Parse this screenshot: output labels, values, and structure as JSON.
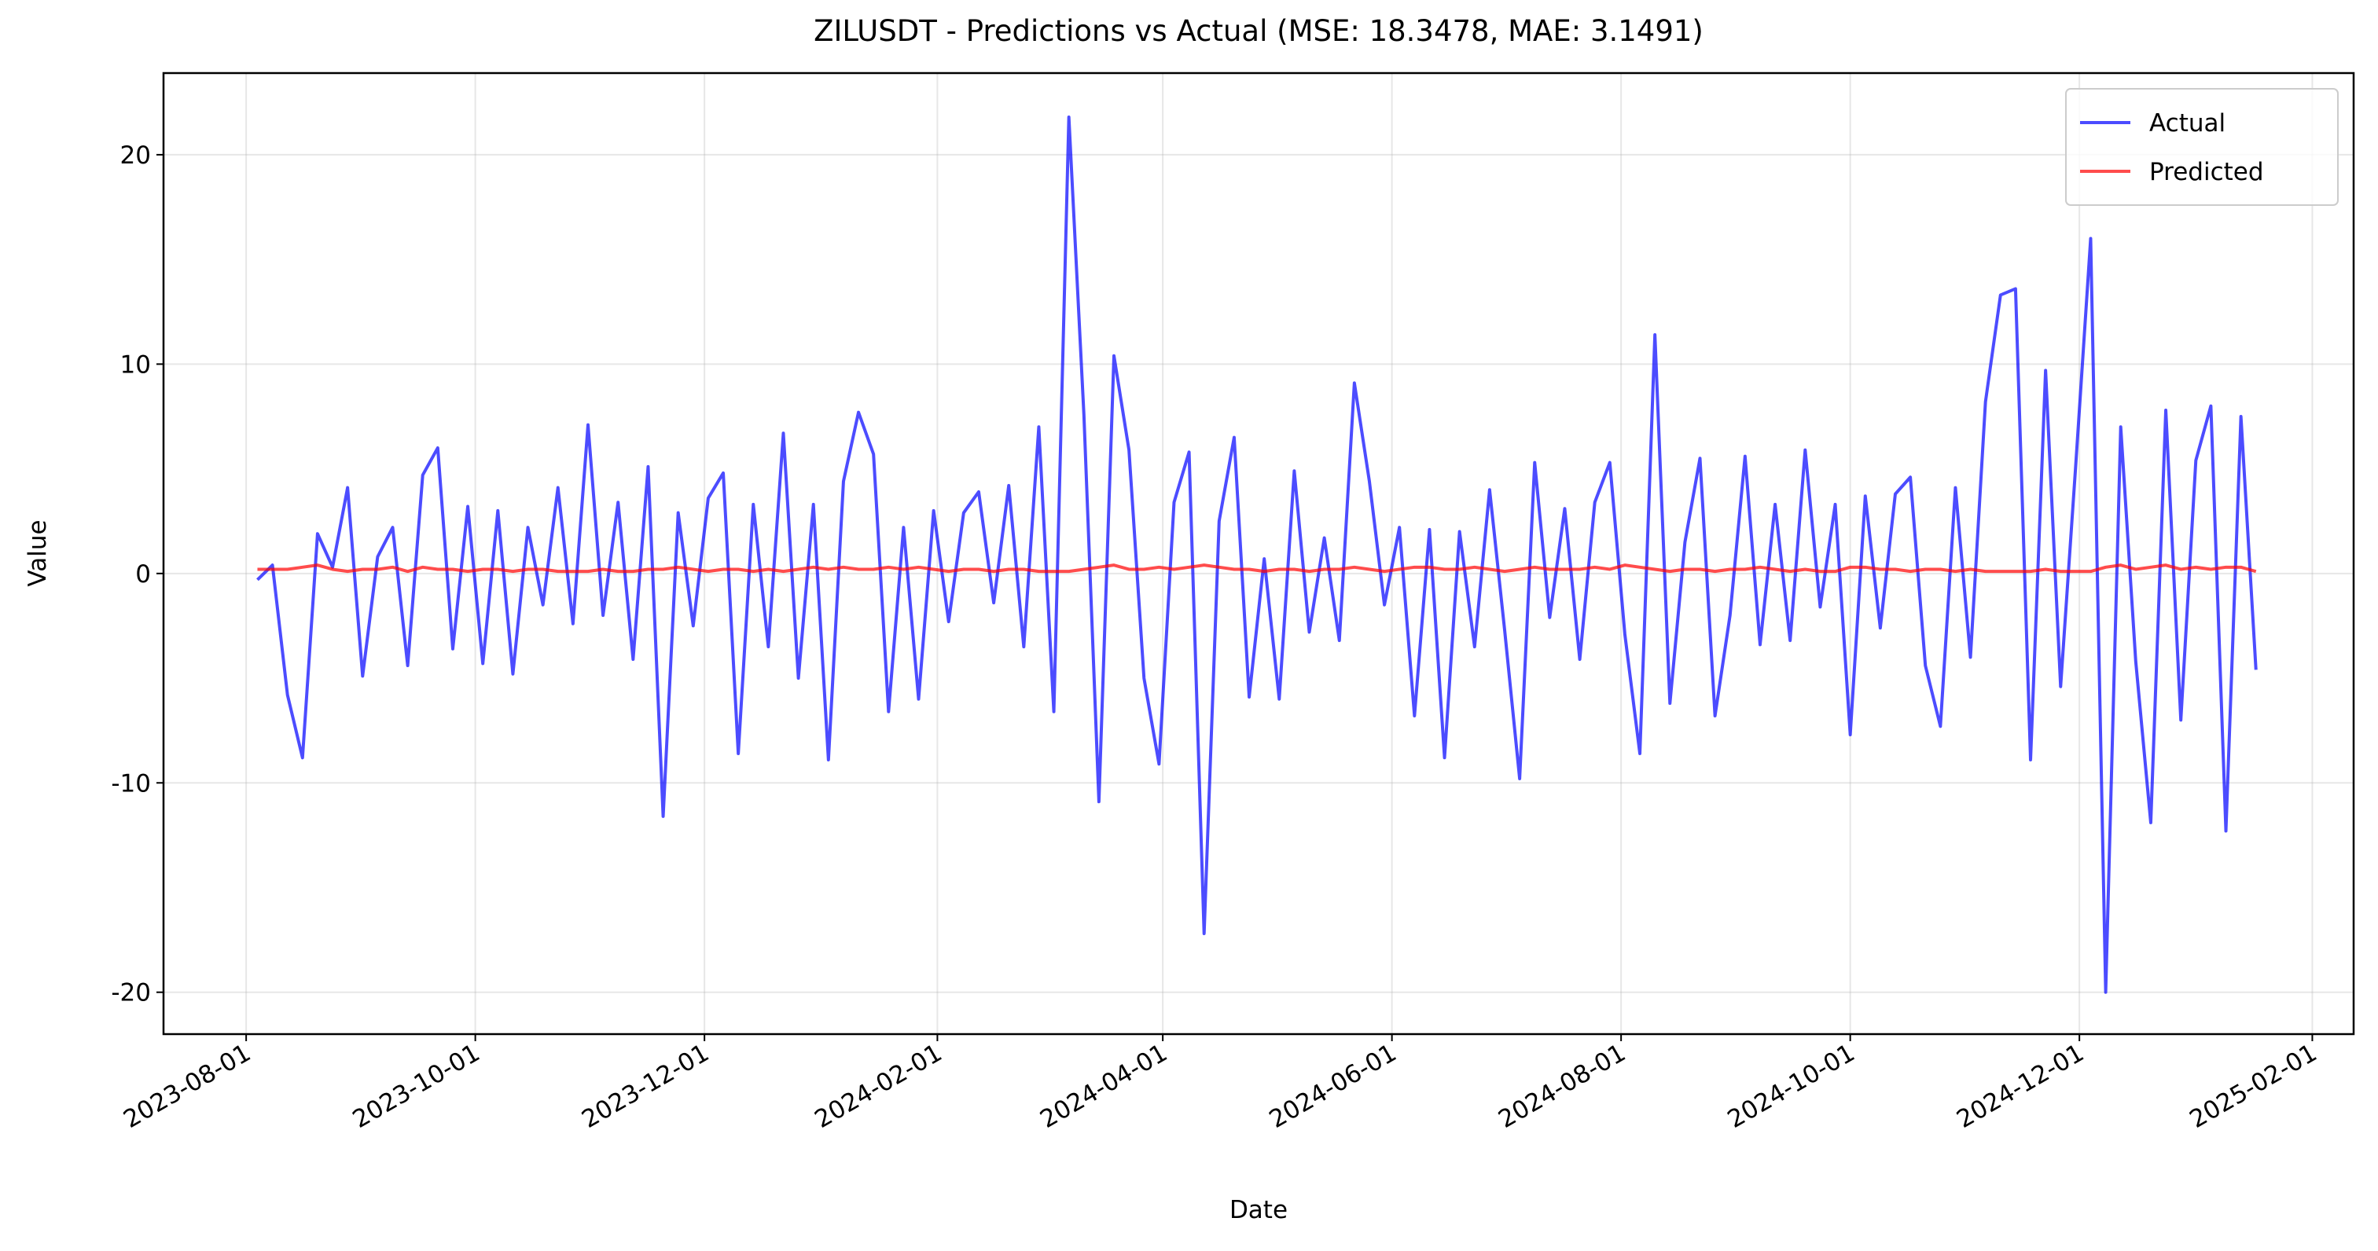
{
  "chart_data": {
    "type": "line",
    "title": "ZILUSDT - Predictions vs Actual (MSE: 18.3478, MAE: 3.1491)",
    "x_label": "Date",
    "y_label": "Value",
    "grid": true,
    "legend": "upper right",
    "xlim": [
      "2023-07-10",
      "2025-02-12"
    ],
    "xticks": [
      "2023-08-01",
      "2023-10-01",
      "2023-12-01",
      "2024-02-01",
      "2024-04-01",
      "2024-06-01",
      "2024-08-01",
      "2024-10-01",
      "2024-12-01",
      "2025-02-01"
    ],
    "ylim": [
      -22.0,
      23.9
    ],
    "yticks": [
      -20,
      -10,
      0,
      10,
      20
    ],
    "x": [
      "2023-08-04",
      "2023-08-08",
      "2023-08-12",
      "2023-08-16",
      "2023-08-20",
      "2023-08-24",
      "2023-08-28",
      "2023-09-01",
      "2023-09-05",
      "2023-09-09",
      "2023-09-13",
      "2023-09-17",
      "2023-09-21",
      "2023-09-25",
      "2023-09-29",
      "2023-10-03",
      "2023-10-07",
      "2023-10-11",
      "2023-10-15",
      "2023-10-19",
      "2023-10-23",
      "2023-10-27",
      "2023-10-31",
      "2023-11-04",
      "2023-11-08",
      "2023-11-12",
      "2023-11-16",
      "2023-11-20",
      "2023-11-24",
      "2023-11-28",
      "2023-12-02",
      "2023-12-06",
      "2023-12-10",
      "2023-12-14",
      "2023-12-18",
      "2023-12-22",
      "2023-12-26",
      "2023-12-30",
      "2024-01-03",
      "2024-01-07",
      "2024-01-11",
      "2024-01-15",
      "2024-01-19",
      "2024-01-23",
      "2024-01-27",
      "2024-01-31",
      "2024-02-04",
      "2024-02-08",
      "2024-02-12",
      "2024-02-16",
      "2024-02-20",
      "2024-02-24",
      "2024-02-28",
      "2024-03-03",
      "2024-03-07",
      "2024-03-11",
      "2024-03-15",
      "2024-03-19",
      "2024-03-23",
      "2024-03-27",
      "2024-03-31",
      "2024-04-04",
      "2024-04-08",
      "2024-04-12",
      "2024-04-16",
      "2024-04-20",
      "2024-04-24",
      "2024-04-28",
      "2024-05-02",
      "2024-05-06",
      "2024-05-10",
      "2024-05-14",
      "2024-05-18",
      "2024-05-22",
      "2024-05-26",
      "2024-05-30",
      "2024-06-03",
      "2024-06-07",
      "2024-06-11",
      "2024-06-15",
      "2024-06-19",
      "2024-06-23",
      "2024-06-27",
      "2024-07-01",
      "2024-07-05",
      "2024-07-09",
      "2024-07-13",
      "2024-07-17",
      "2024-07-21",
      "2024-07-25",
      "2024-07-29",
      "2024-08-02",
      "2024-08-06",
      "2024-08-10",
      "2024-08-14",
      "2024-08-18",
      "2024-08-22",
      "2024-08-26",
      "2024-08-30",
      "2024-09-03",
      "2024-09-07",
      "2024-09-11",
      "2024-09-15",
      "2024-09-19",
      "2024-09-23",
      "2024-09-27",
      "2024-10-01",
      "2024-10-05",
      "2024-10-09",
      "2024-10-13",
      "2024-10-17",
      "2024-10-21",
      "2024-10-25",
      "2024-10-29",
      "2024-11-02",
      "2024-11-06",
      "2024-11-10",
      "2024-11-14",
      "2024-11-18",
      "2024-11-22",
      "2024-11-26",
      "2024-11-30",
      "2024-12-04",
      "2024-12-08",
      "2024-12-12",
      "2024-12-16",
      "2024-12-20",
      "2024-12-24",
      "2024-12-28",
      "2025-01-01",
      "2025-01-05",
      "2025-01-09",
      "2025-01-13",
      "2025-01-17"
    ],
    "series": [
      {
        "name": "Actual",
        "color": "blue",
        "values": [
          -0.3,
          0.4,
          -5.8,
          -8.8,
          1.9,
          0.3,
          4.1,
          -4.9,
          0.8,
          2.2,
          -4.4,
          4.7,
          6.0,
          -3.6,
          3.2,
          -4.3,
          3.0,
          -4.8,
          2.2,
          -1.5,
          4.1,
          -2.4,
          7.1,
          -2.0,
          3.4,
          -4.1,
          5.1,
          -11.6,
          2.9,
          -2.5,
          3.6,
          4.8,
          -8.6,
          3.3,
          -3.5,
          6.7,
          -5.0,
          3.3,
          -8.9,
          4.4,
          7.7,
          5.7,
          -6.6,
          2.2,
          -6.0,
          3.0,
          -2.3,
          2.9,
          3.9,
          -1.4,
          4.2,
          -3.5,
          7.0,
          -6.6,
          21.8,
          7.6,
          -10.9,
          10.4,
          5.9,
          -5.0,
          -9.1,
          3.4,
          5.8,
          -17.2,
          2.5,
          6.5,
          -5.9,
          0.7,
          -6.0,
          4.9,
          -2.8,
          1.7,
          -3.2,
          9.1,
          4.4,
          -1.5,
          2.2,
          -6.8,
          2.1,
          -8.8,
          2.0,
          -3.5,
          4.0,
          -2.7,
          -9.8,
          5.3,
          -2.1,
          3.1,
          -4.1,
          3.4,
          5.3,
          -2.9,
          -8.6,
          11.4,
          -6.2,
          1.5,
          5.5,
          -6.8,
          -2.0,
          5.6,
          -3.4,
          3.3,
          -3.2,
          5.9,
          -1.6,
          3.3,
          -7.7,
          3.7,
          -2.6,
          3.8,
          4.6,
          -4.4,
          -7.3,
          4.1,
          -4.0,
          8.2,
          13.3,
          13.6,
          -8.9,
          9.7,
          -5.4,
          5.1,
          16.0,
          -20.0,
          7.0,
          -4.2,
          -11.9,
          7.8,
          -7.0,
          5.4,
          8.0,
          -12.3,
          7.5,
          -4.6
        ]
      },
      {
        "name": "Predicted",
        "color": "red",
        "values": [
          0.2,
          0.2,
          0.2,
          0.3,
          0.4,
          0.2,
          0.1,
          0.2,
          0.2,
          0.3,
          0.1,
          0.3,
          0.2,
          0.2,
          0.1,
          0.2,
          0.2,
          0.1,
          0.2,
          0.2,
          0.1,
          0.1,
          0.1,
          0.2,
          0.1,
          0.1,
          0.2,
          0.2,
          0.3,
          0.2,
          0.1,
          0.2,
          0.2,
          0.1,
          0.2,
          0.1,
          0.2,
          0.3,
          0.2,
          0.3,
          0.2,
          0.2,
          0.3,
          0.2,
          0.3,
          0.2,
          0.1,
          0.2,
          0.2,
          0.1,
          0.2,
          0.2,
          0.1,
          0.1,
          0.1,
          0.2,
          0.3,
          0.4,
          0.2,
          0.2,
          0.3,
          0.2,
          0.3,
          0.4,
          0.3,
          0.2,
          0.2,
          0.1,
          0.2,
          0.2,
          0.1,
          0.2,
          0.2,
          0.3,
          0.2,
          0.1,
          0.2,
          0.3,
          0.3,
          0.2,
          0.2,
          0.3,
          0.2,
          0.1,
          0.2,
          0.3,
          0.2,
          0.2,
          0.2,
          0.3,
          0.2,
          0.4,
          0.3,
          0.2,
          0.1,
          0.2,
          0.2,
          0.1,
          0.2,
          0.2,
          0.3,
          0.2,
          0.1,
          0.2,
          0.1,
          0.1,
          0.3,
          0.3,
          0.2,
          0.2,
          0.1,
          0.2,
          0.2,
          0.1,
          0.2,
          0.1,
          0.1,
          0.1,
          0.1,
          0.2,
          0.1,
          0.1,
          0.1,
          0.3,
          0.4,
          0.2,
          0.3,
          0.4,
          0.2,
          0.3,
          0.2,
          0.3,
          0.3,
          0.1
        ]
      }
    ]
  }
}
